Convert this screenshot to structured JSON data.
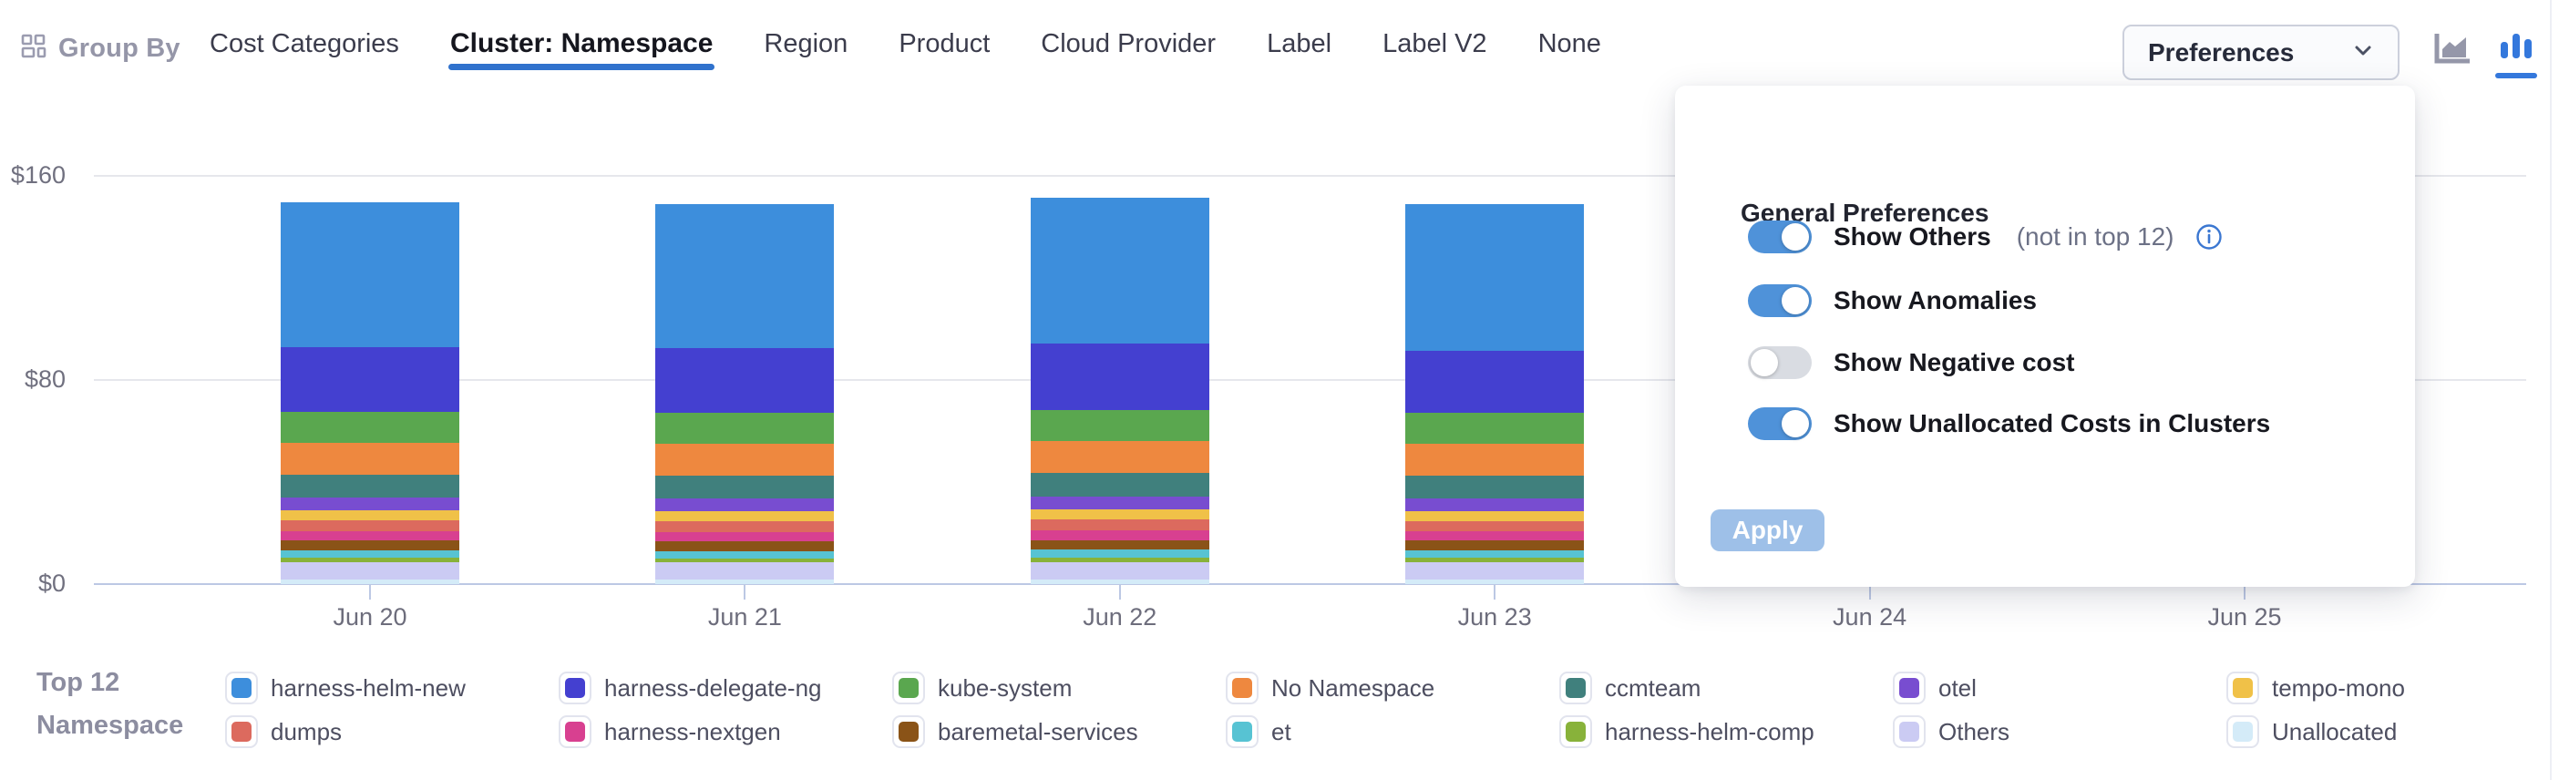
{
  "toolbar": {
    "group_by_label": "Group By",
    "tabs": [
      {
        "label": "Cost Categories",
        "active": false
      },
      {
        "label": "Cluster: Namespace",
        "active": true
      },
      {
        "label": "Region",
        "active": false
      },
      {
        "label": "Product",
        "active": false
      },
      {
        "label": "Cloud Provider",
        "active": false
      },
      {
        "label": "Label",
        "active": false
      },
      {
        "label": "Label V2",
        "active": false
      },
      {
        "label": "None",
        "active": false
      }
    ],
    "preferences_button_label": "Preferences",
    "chart_type_icons": [
      {
        "name": "area-chart-icon",
        "active": false
      },
      {
        "name": "bar-chart-icon",
        "active": true
      }
    ]
  },
  "preferences_panel": {
    "title": "General Preferences",
    "toggles": [
      {
        "label": "Show Others",
        "suffix": "(not in top 12)",
        "info_icon": true,
        "on": true
      },
      {
        "label": "Show Anomalies",
        "suffix": "",
        "info_icon": false,
        "on": true
      },
      {
        "label": "Show Negative cost",
        "suffix": "",
        "info_icon": false,
        "on": false
      },
      {
        "label": "Show Unallocated Costs in Clusters",
        "suffix": "",
        "info_icon": false,
        "on": true
      }
    ],
    "apply_button_label": "Apply",
    "apply_enabled": false
  },
  "legend": {
    "title_line1": "Top 12",
    "title_line2": "Namespace"
  },
  "colors": {
    "accent_blue": "#3072cd",
    "toggle_on": "#4f92d9",
    "apply_disabled": "#9ec0e8",
    "axis_line": "#bcc8e4",
    "gridline": "#e6e7ec"
  },
  "chart_data": {
    "type": "bar",
    "stacked": true,
    "title": "",
    "xlabel": "",
    "ylabel": "",
    "categories": [
      "Jun 20",
      "Jun 21",
      "Jun 22",
      "Jun 23",
      "Jun 24",
      "Jun 25"
    ],
    "ylim": [
      0,
      160
    ],
    "y_ticks": [
      {
        "label": "$0",
        "value": 0
      },
      {
        "label": "$80",
        "value": 80
      },
      {
        "label": "$160",
        "value": 160
      }
    ],
    "grid": true,
    "legend_position": "bottom",
    "series": [
      {
        "name": "harness-helm-new",
        "color": "#3d8edc",
        "values": [
          57.0,
          56.5,
          57.2,
          57.5,
          null,
          null
        ]
      },
      {
        "name": "harness-delegate-ng",
        "color": "#4440d0",
        "values": [
          25.3,
          25.5,
          26.0,
          24.5,
          null,
          null
        ]
      },
      {
        "name": "kube-system",
        "color": "#5aa74f",
        "values": [
          12.1,
          12.0,
          12.2,
          12.0,
          null,
          null
        ]
      },
      {
        "name": "No Namespace",
        "color": "#ee883f",
        "values": [
          12.5,
          12.4,
          12.6,
          12.5,
          null,
          null
        ]
      },
      {
        "name": "ccmteam",
        "color": "#40807d",
        "values": [
          9.0,
          9.0,
          9.2,
          9.0,
          null,
          null
        ]
      },
      {
        "name": "otel",
        "color": "#784dd0",
        "values": [
          4.9,
          5.0,
          5.0,
          4.9,
          null,
          null
        ]
      },
      {
        "name": "tempo-mono",
        "color": "#f0c148",
        "values": [
          3.9,
          4.0,
          4.0,
          3.9,
          null,
          null
        ]
      },
      {
        "name": "dumps",
        "color": "#dc6a5e",
        "values": [
          4.3,
          4.2,
          4.3,
          4.2,
          null,
          null
        ]
      },
      {
        "name": "harness-nextgen",
        "color": "#d84090",
        "values": [
          3.6,
          3.6,
          3.7,
          3.6,
          null,
          null
        ]
      },
      {
        "name": "baremetal-services",
        "color": "#8a5317",
        "values": [
          3.9,
          3.8,
          3.9,
          3.8,
          null,
          null
        ]
      },
      {
        "name": "et",
        "color": "#57c3d3",
        "values": [
          2.9,
          2.9,
          3.0,
          2.9,
          null,
          null
        ]
      },
      {
        "name": "harness-helm-comp",
        "color": "#88b23a",
        "values": [
          1.7,
          1.7,
          1.8,
          1.7,
          null,
          null
        ]
      },
      {
        "name": "Others",
        "color": "#cbcbf3",
        "values": [
          6.8,
          6.7,
          6.8,
          6.8,
          null,
          null
        ]
      },
      {
        "name": "Unallocated",
        "color": "#d4ebf8",
        "values": [
          1.8,
          1.7,
          1.8,
          1.8,
          null,
          null
        ]
      }
    ]
  }
}
